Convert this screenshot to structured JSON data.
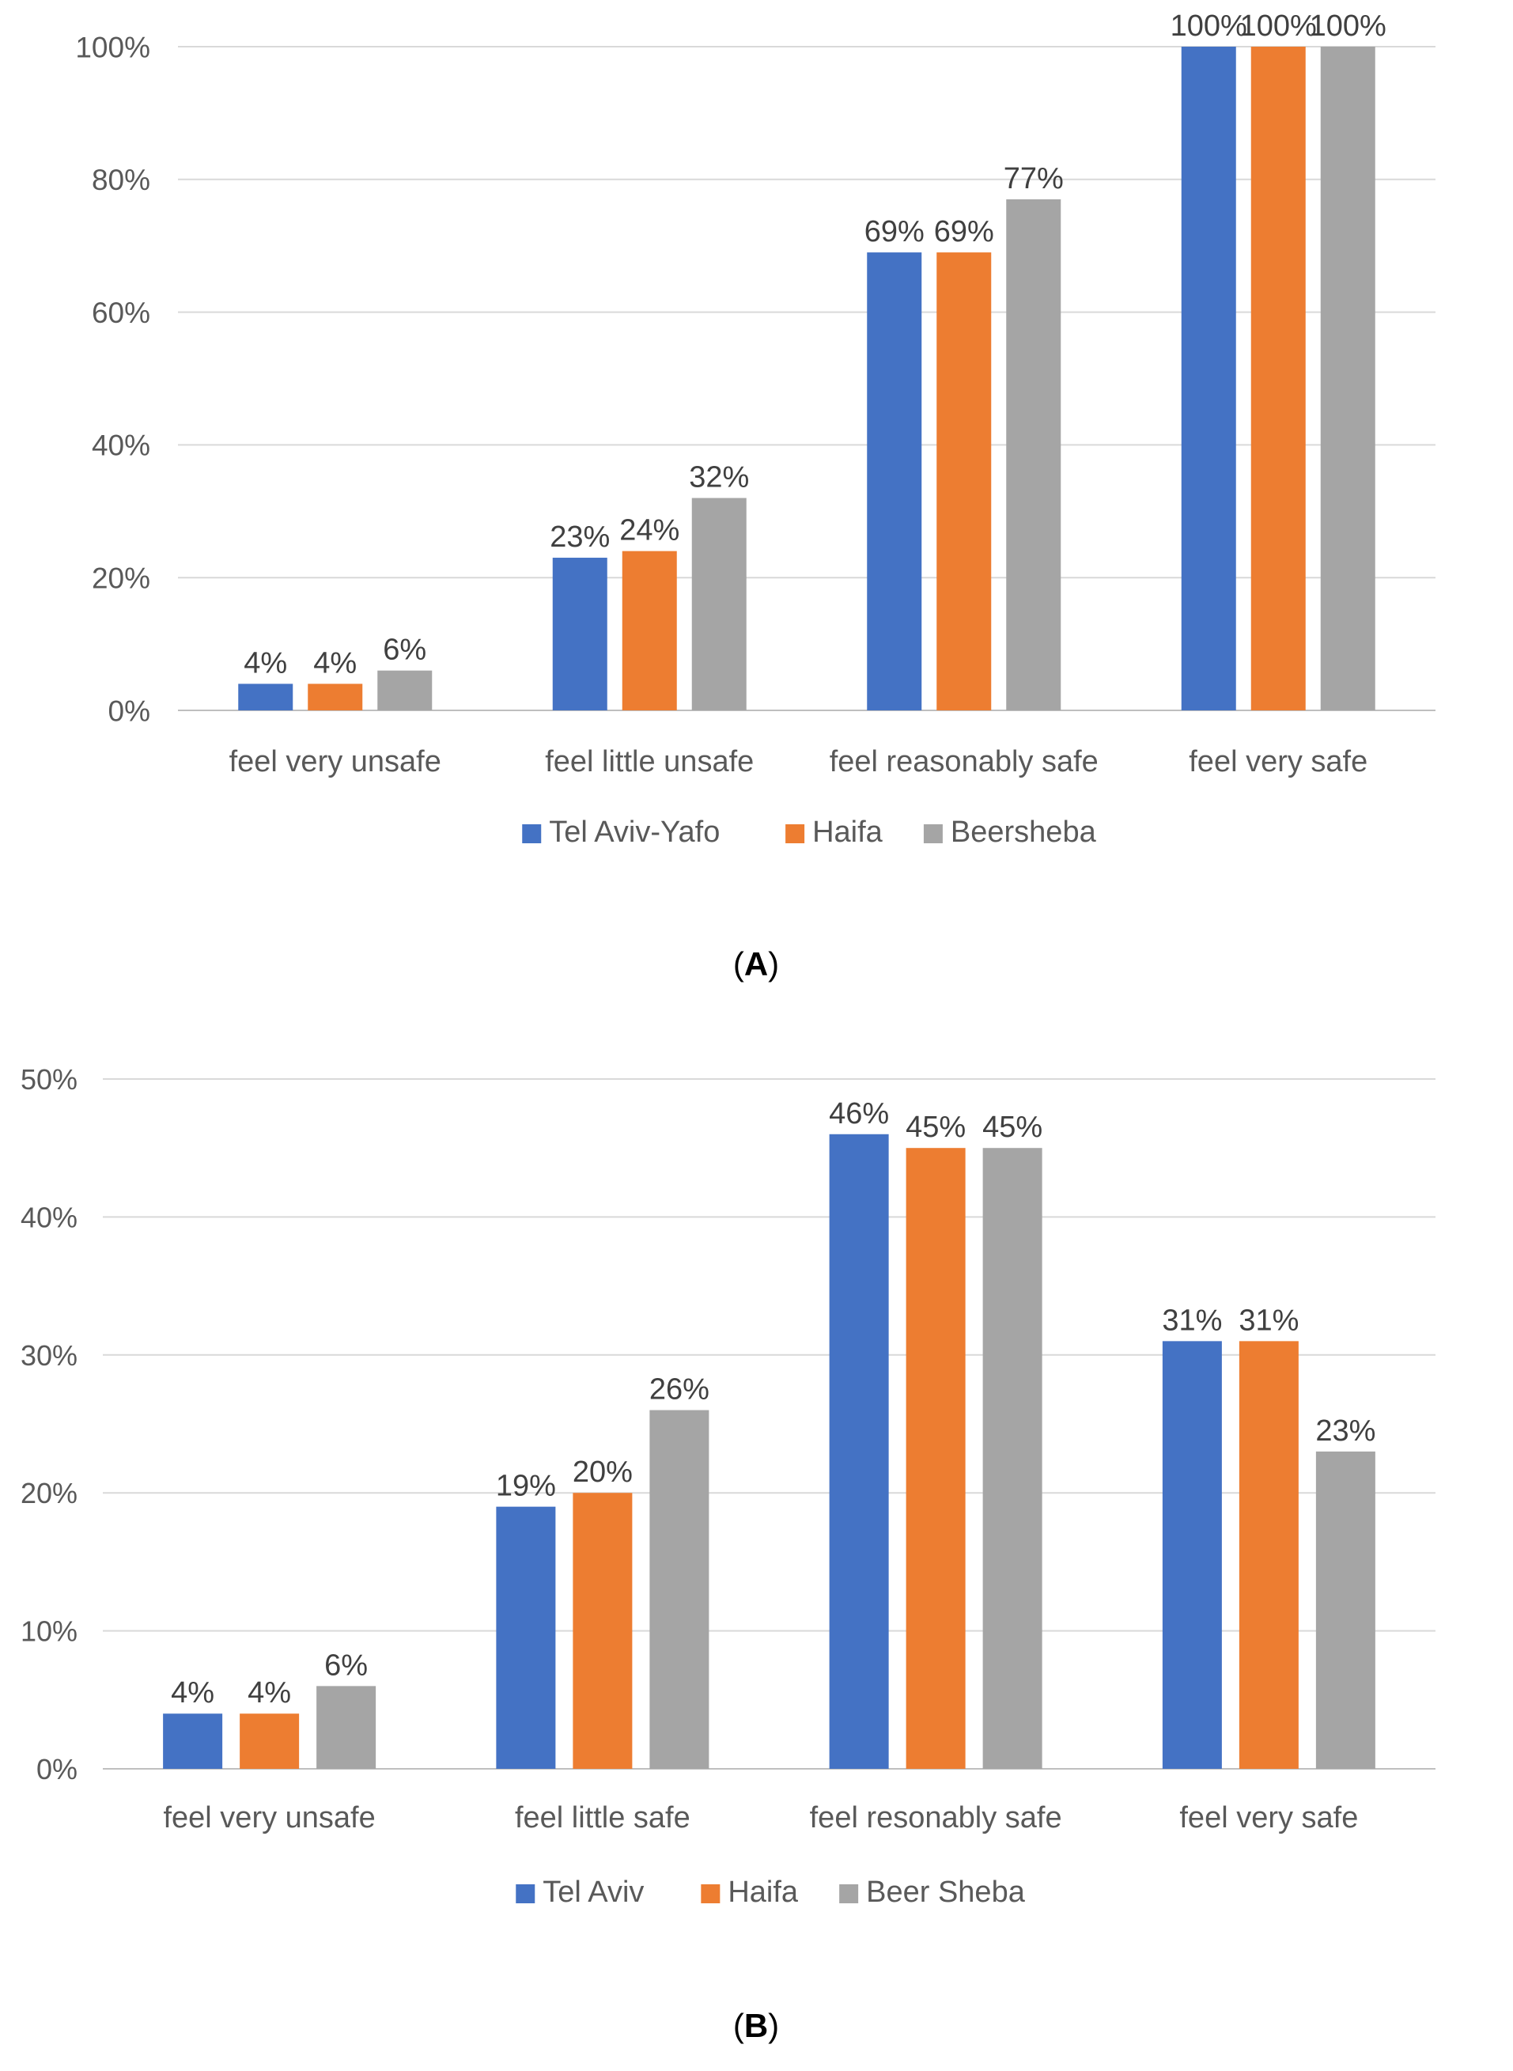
{
  "chart_data": [
    {
      "type": "bar",
      "caption": "A",
      "categories": [
        "feel very unsafe",
        "feel little unsafe",
        "feel reasonably safe",
        "feel very safe"
      ],
      "series": [
        {
          "name": "Tel Aviv-Yafo",
          "color": "#4472C4",
          "values": [
            4,
            23,
            69,
            100
          ],
          "labels": [
            "4%",
            "23%",
            "69%",
            "100%"
          ]
        },
        {
          "name": "Haifa",
          "color": "#ED7D31",
          "values": [
            4,
            24,
            69,
            100
          ],
          "labels": [
            "4%",
            "24%",
            "69%",
            "100%"
          ]
        },
        {
          "name": "Beersheba",
          "color": "#A5A5A5",
          "values": [
            6,
            32,
            77,
            100
          ],
          "labels": [
            "6%",
            "32%",
            "77%",
            "100%"
          ]
        }
      ],
      "y_ticks": [
        "0%",
        "20%",
        "40%",
        "60%",
        "80%",
        "100%"
      ],
      "ylim": [
        0,
        100
      ],
      "grid": true,
      "legend_position": "bottom"
    },
    {
      "type": "bar",
      "caption": "B",
      "categories": [
        "feel very unsafe",
        "feel little safe",
        "feel resonably safe",
        "feel very safe"
      ],
      "series": [
        {
          "name": "Tel Aviv",
          "color": "#4472C4",
          "values": [
            4,
            19,
            46,
            31
          ],
          "labels": [
            "4%",
            "19%",
            "46%",
            "31%"
          ]
        },
        {
          "name": "Haifa",
          "color": "#ED7D31",
          "values": [
            4,
            20,
            45,
            31
          ],
          "labels": [
            "4%",
            "20%",
            "45%",
            "31%"
          ]
        },
        {
          "name": "Beer Sheba",
          "color": "#A5A5A5",
          "values": [
            6,
            26,
            45,
            23
          ],
          "labels": [
            "6%",
            "26%",
            "45%",
            "23%"
          ]
        }
      ],
      "y_ticks": [
        "0%",
        "10%",
        "20%",
        "30%",
        "40%",
        "50%"
      ],
      "ylim": [
        0,
        50
      ],
      "grid": true,
      "legend_position": "bottom"
    }
  ]
}
